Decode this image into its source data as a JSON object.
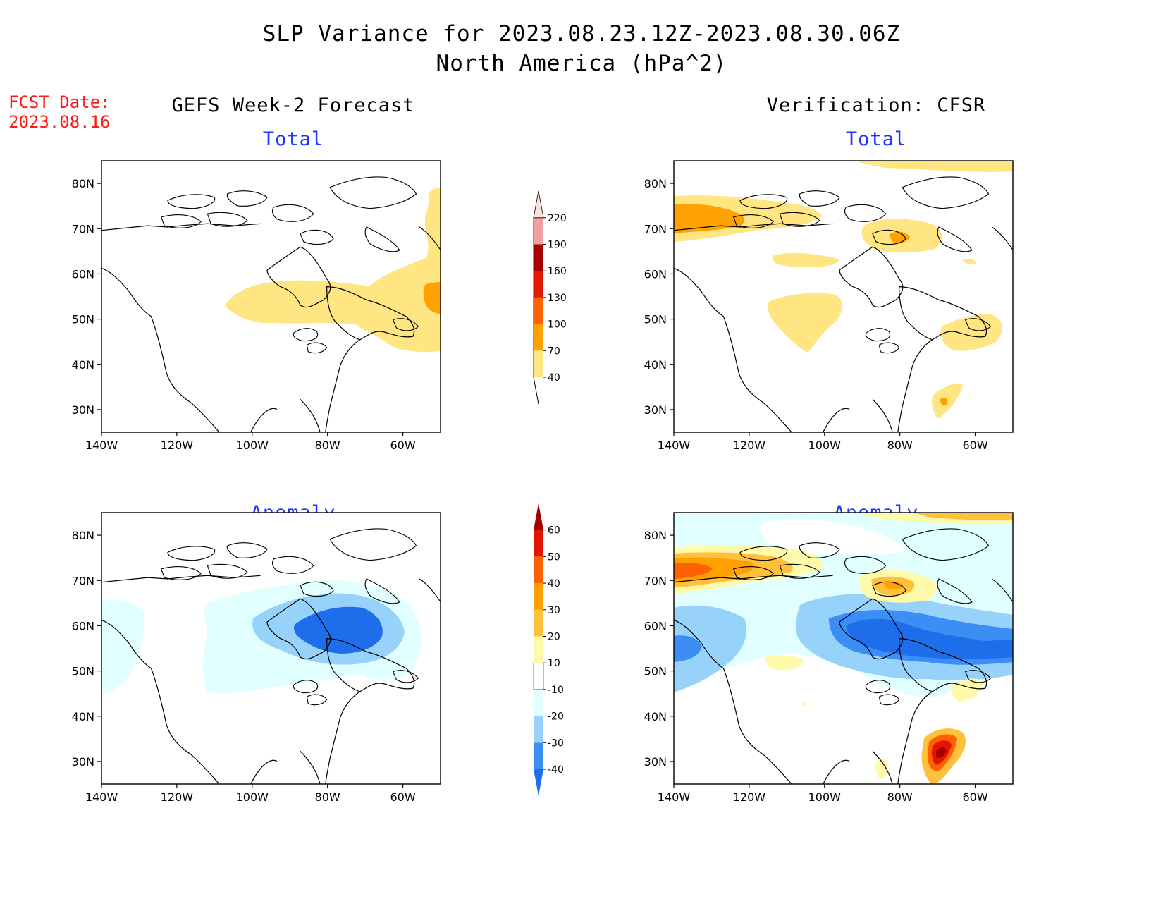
{
  "title": {
    "line1": "SLP Variance for 2023.08.23.12Z-2023.08.30.06Z",
    "line2": "North America (hPa^2)"
  },
  "fcst_date": {
    "label": "FCST Date:",
    "value": "2023.08.16"
  },
  "columns": {
    "left": "GEFS Week-2 Forecast",
    "right": "Verification: CFSR"
  },
  "panels": {
    "top_left": "Total",
    "top_right": "Total",
    "bottom_left": "Anomaly",
    "bottom_right": "Anomaly"
  },
  "axes": {
    "lat_labels": [
      "80N",
      "70N",
      "60N",
      "50N",
      "40N",
      "30N"
    ],
    "lat_values": [
      80,
      70,
      60,
      50,
      40,
      30
    ],
    "lon_labels": [
      "140W",
      "120W",
      "100W",
      "80W",
      "60W"
    ],
    "lon_values": [
      -140,
      -120,
      -100,
      -80,
      -60
    ],
    "lat_range": [
      25,
      85
    ],
    "lon_range": [
      -140,
      -50
    ]
  },
  "colorbars": {
    "total": {
      "labels": [
        "40",
        "70",
        "100",
        "130",
        "160",
        "190",
        "220"
      ],
      "colors": [
        "#ffe682",
        "#ffa100",
        "#ff6000",
        "#e11a00",
        "#a50000",
        "#f0a0a0",
        "#fde0dc"
      ]
    },
    "anomaly": {
      "labels": [
        "-40",
        "-30",
        "-20",
        "-10",
        "10",
        "20",
        "30",
        "40",
        "50",
        "60"
      ],
      "colors": [
        "#1e6eeb",
        "#3c8ef5",
        "#96d2fa",
        "#e1ffff",
        "#ffffff",
        "#fffaaa",
        "#ffc03c",
        "#ffa000",
        "#ff6000",
        "#e11400",
        "#a50000"
      ]
    }
  },
  "colors": {
    "title_red": "#ff1a1a",
    "panel_blue": "#1f33ff"
  }
}
